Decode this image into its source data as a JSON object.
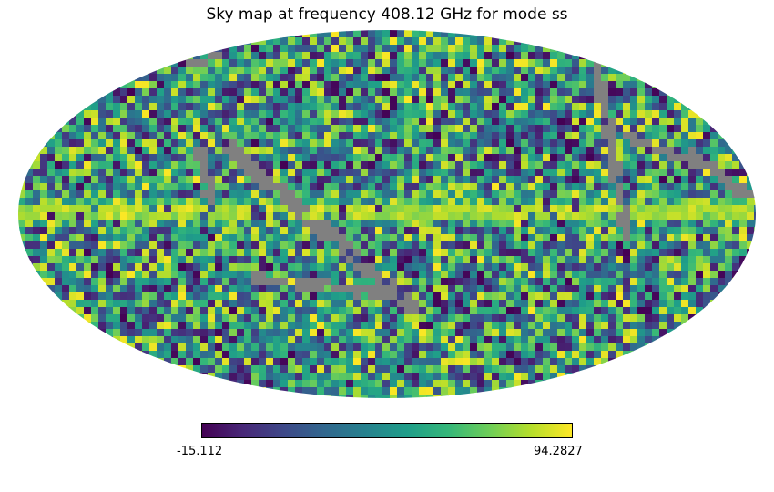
{
  "chart_data": {
    "type": "heatmap",
    "projection": "mollweide",
    "title": "Sky map at frequency 408.12 GHz for mode ss",
    "colormap": "viridis",
    "colorbar": {
      "min_label": "-15.112",
      "max_label": "94.2827",
      "min": -15.112,
      "max": 94.2827
    },
    "missing_color": "#808080",
    "grid": false,
    "legend": "bottom-center"
  }
}
